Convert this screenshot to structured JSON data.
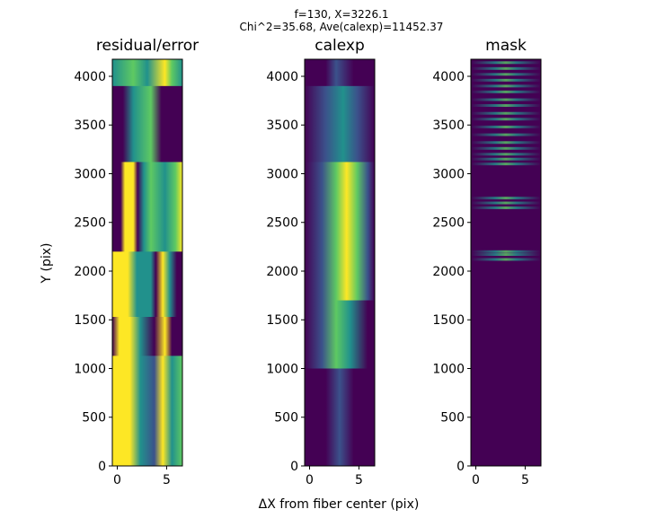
{
  "chart_data": {
    "type": "heatmap",
    "suptitle_line1": "f=130, X=3226.1",
    "suptitle_line2": "Chi^2=35.68, Ave(calexp)=11452.37",
    "xlabel": "ΔX from fiber center (pix)",
    "ylabel": "Y (pix)",
    "xlim": [
      -0.5,
      6.6
    ],
    "ylim": [
      0,
      4175
    ],
    "xticks": [
      "0",
      "5"
    ],
    "yticks": [
      "0",
      "500",
      "1000",
      "1500",
      "2000",
      "2500",
      "3000",
      "3500",
      "4000"
    ],
    "colormap": "viridis",
    "panels": [
      {
        "title": "residual/error"
      },
      {
        "title": "calexp"
      },
      {
        "title": "mask"
      }
    ]
  },
  "colors": {
    "dark": "#440154",
    "blue": "#3b528b",
    "teal": "#21918c",
    "green": "#5ec962",
    "yellow": "#fde725"
  }
}
